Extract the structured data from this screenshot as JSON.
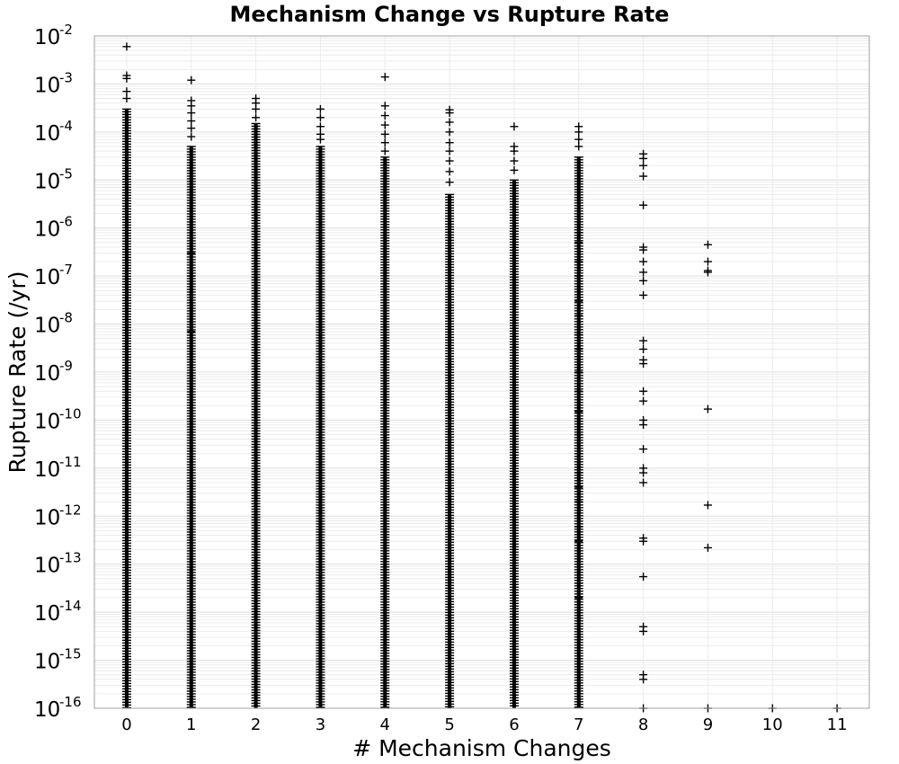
{
  "chart_data": {
    "type": "scatter",
    "title": "Mechanism Change vs Rupture Rate",
    "xlabel": "# Mechanism Changes",
    "ylabel": "Rupture Rate (/yr)",
    "xlim": [
      -0.5,
      11.5
    ],
    "ylim": [
      1e-16,
      0.01
    ],
    "y_scale": "log",
    "grid": true,
    "marker": "plus",
    "marker_color": "#000000",
    "x_ticks": [
      "0",
      "1",
      "2",
      "3",
      "4",
      "5",
      "6",
      "7",
      "8",
      "9",
      "10",
      "11"
    ],
    "y_ticks": [
      {
        "base": "10",
        "exp": "-2"
      },
      {
        "base": "10",
        "exp": "-3"
      },
      {
        "base": "10",
        "exp": "-4"
      },
      {
        "base": "10",
        "exp": "-5"
      },
      {
        "base": "10",
        "exp": "-6"
      },
      {
        "base": "10",
        "exp": "-7"
      },
      {
        "base": "10",
        "exp": "-8"
      },
      {
        "base": "10",
        "exp": "-9"
      },
      {
        "base": "10",
        "exp": "-10"
      },
      {
        "base": "10",
        "exp": "-11"
      },
      {
        "base": "10",
        "exp": "-12"
      },
      {
        "base": "10",
        "exp": "-13"
      },
      {
        "base": "10",
        "exp": "-14"
      },
      {
        "base": "10",
        "exp": "-15"
      },
      {
        "base": "10",
        "exp": "-16"
      }
    ],
    "dense_bands": [
      {
        "x": 0,
        "y_min": 1e-16,
        "y_max": 0.0003
      },
      {
        "x": 1,
        "y_min": 1e-16,
        "y_max": 5e-05
      },
      {
        "x": 2,
        "y_min": 1e-16,
        "y_max": 0.00015
      },
      {
        "x": 3,
        "y_min": 1e-16,
        "y_max": 5e-05
      },
      {
        "x": 4,
        "y_min": 1e-16,
        "y_max": 3e-05
      },
      {
        "x": 5,
        "y_min": 1e-16,
        "y_max": 5e-06
      },
      {
        "x": 6,
        "y_min": 1e-16,
        "y_max": 1e-05
      },
      {
        "x": 7,
        "y_min": 1e-16,
        "y_max": 3e-05
      }
    ],
    "points": [
      {
        "x": 0,
        "y": 0.006
      },
      {
        "x": 0,
        "y": 0.0015
      },
      {
        "x": 0,
        "y": 0.0013
      },
      {
        "x": 0,
        "y": 0.0007
      },
      {
        "x": 0,
        "y": 0.0005
      },
      {
        "x": 1,
        "y": 0.0012
      },
      {
        "x": 1,
        "y": 0.00045
      },
      {
        "x": 1,
        "y": 0.00035
      },
      {
        "x": 1,
        "y": 0.00025
      },
      {
        "x": 1,
        "y": 0.00017
      },
      {
        "x": 1,
        "y": 0.00012
      },
      {
        "x": 1,
        "y": 8e-05
      },
      {
        "x": 1,
        "y": 3e-07
      },
      {
        "x": 1,
        "y": 1e-07
      },
      {
        "x": 1,
        "y": 7e-09
      },
      {
        "x": 2,
        "y": 0.0005
      },
      {
        "x": 2,
        "y": 0.0004
      },
      {
        "x": 2,
        "y": 0.0003
      },
      {
        "x": 2,
        "y": 0.0002
      },
      {
        "x": 3,
        "y": 0.0003
      },
      {
        "x": 3,
        "y": 0.0002
      },
      {
        "x": 3,
        "y": 0.00013
      },
      {
        "x": 3,
        "y": 9e-05
      },
      {
        "x": 3,
        "y": 7e-05
      },
      {
        "x": 4,
        "y": 0.0014
      },
      {
        "x": 4,
        "y": 0.00035
      },
      {
        "x": 4,
        "y": 0.00022
      },
      {
        "x": 4,
        "y": 0.00014
      },
      {
        "x": 4,
        "y": 9e-05
      },
      {
        "x": 4,
        "y": 6e-05
      },
      {
        "x": 4,
        "y": 4e-05
      },
      {
        "x": 5,
        "y": 0.00029
      },
      {
        "x": 5,
        "y": 0.00025
      },
      {
        "x": 5,
        "y": 0.00016
      },
      {
        "x": 5,
        "y": 0.0001
      },
      {
        "x": 5,
        "y": 6e-05
      },
      {
        "x": 5,
        "y": 4e-05
      },
      {
        "x": 5,
        "y": 2.5e-05
      },
      {
        "x": 5,
        "y": 1.5e-05
      },
      {
        "x": 5,
        "y": 9e-06
      },
      {
        "x": 6,
        "y": 0.00013
      },
      {
        "x": 6,
        "y": 5e-05
      },
      {
        "x": 6,
        "y": 4e-05
      },
      {
        "x": 6,
        "y": 2.5e-05
      },
      {
        "x": 6,
        "y": 1.6e-05
      },
      {
        "x": 7,
        "y": 0.00013
      },
      {
        "x": 7,
        "y": 0.0001
      },
      {
        "x": 7,
        "y": 7e-05
      },
      {
        "x": 7,
        "y": 5e-05
      },
      {
        "x": 7,
        "y": 8e-07
      },
      {
        "x": 7,
        "y": 5e-07
      },
      {
        "x": 7,
        "y": 2e-07
      },
      {
        "x": 7,
        "y": 1e-07
      },
      {
        "x": 7,
        "y": 3e-08
      },
      {
        "x": 7,
        "y": 1.5e-08
      },
      {
        "x": 7,
        "y": 6e-09
      },
      {
        "x": 7,
        "y": 3e-09
      },
      {
        "x": 7,
        "y": 1e-09
      },
      {
        "x": 7,
        "y": 4e-10
      },
      {
        "x": 7,
        "y": 1.5e-10
      },
      {
        "x": 7,
        "y": 5e-11
      },
      {
        "x": 7,
        "y": 2e-11
      },
      {
        "x": 7,
        "y": 8e-12
      },
      {
        "x": 7,
        "y": 4e-12
      },
      {
        "x": 7,
        "y": 2e-12
      },
      {
        "x": 7,
        "y": 6e-13
      },
      {
        "x": 7,
        "y": 3e-13
      },
      {
        "x": 7,
        "y": 1e-13
      },
      {
        "x": 7,
        "y": 4e-14
      },
      {
        "x": 7,
        "y": 2e-14
      },
      {
        "x": 8,
        "y": 3.5e-05
      },
      {
        "x": 8,
        "y": 2.8e-05
      },
      {
        "x": 8,
        "y": 2e-05
      },
      {
        "x": 8,
        "y": 1.2e-05
      },
      {
        "x": 8,
        "y": 3e-06
      },
      {
        "x": 8,
        "y": 4e-07
      },
      {
        "x": 8,
        "y": 3.5e-07
      },
      {
        "x": 8,
        "y": 2e-07
      },
      {
        "x": 8,
        "y": 1.2e-07
      },
      {
        "x": 8,
        "y": 8e-08
      },
      {
        "x": 8,
        "y": 4e-08
      },
      {
        "x": 8,
        "y": 4.5e-09
      },
      {
        "x": 8,
        "y": 3e-09
      },
      {
        "x": 8,
        "y": 1.8e-09
      },
      {
        "x": 8,
        "y": 1.5e-09
      },
      {
        "x": 8,
        "y": 4e-10
      },
      {
        "x": 8,
        "y": 2.5e-10
      },
      {
        "x": 8,
        "y": 1e-10
      },
      {
        "x": 8,
        "y": 8e-11
      },
      {
        "x": 8,
        "y": 2.5e-11
      },
      {
        "x": 8,
        "y": 1e-11
      },
      {
        "x": 8,
        "y": 8e-12
      },
      {
        "x": 8,
        "y": 5e-12
      },
      {
        "x": 8,
        "y": 3.5e-13
      },
      {
        "x": 8,
        "y": 3e-13
      },
      {
        "x": 8,
        "y": 5.5e-14
      },
      {
        "x": 8,
        "y": 5e-15
      },
      {
        "x": 8,
        "y": 4e-15
      },
      {
        "x": 8,
        "y": 5e-16
      },
      {
        "x": 8,
        "y": 4e-16
      },
      {
        "x": 8,
        "y": 1e-16
      },
      {
        "x": 9,
        "y": 4.5e-07
      },
      {
        "x": 9,
        "y": 2e-07
      },
      {
        "x": 9,
        "y": 1.3e-07
      },
      {
        "x": 9,
        "y": 1.2e-07
      },
      {
        "x": 9,
        "y": 1.7e-10
      },
      {
        "x": 9,
        "y": 1.7e-12
      },
      {
        "x": 9,
        "y": 2.2e-13
      },
      {
        "x": 9,
        "y": 1e-16
      },
      {
        "x": 10,
        "y": 1e-16
      },
      {
        "x": 11,
        "y": 1e-16
      }
    ]
  }
}
